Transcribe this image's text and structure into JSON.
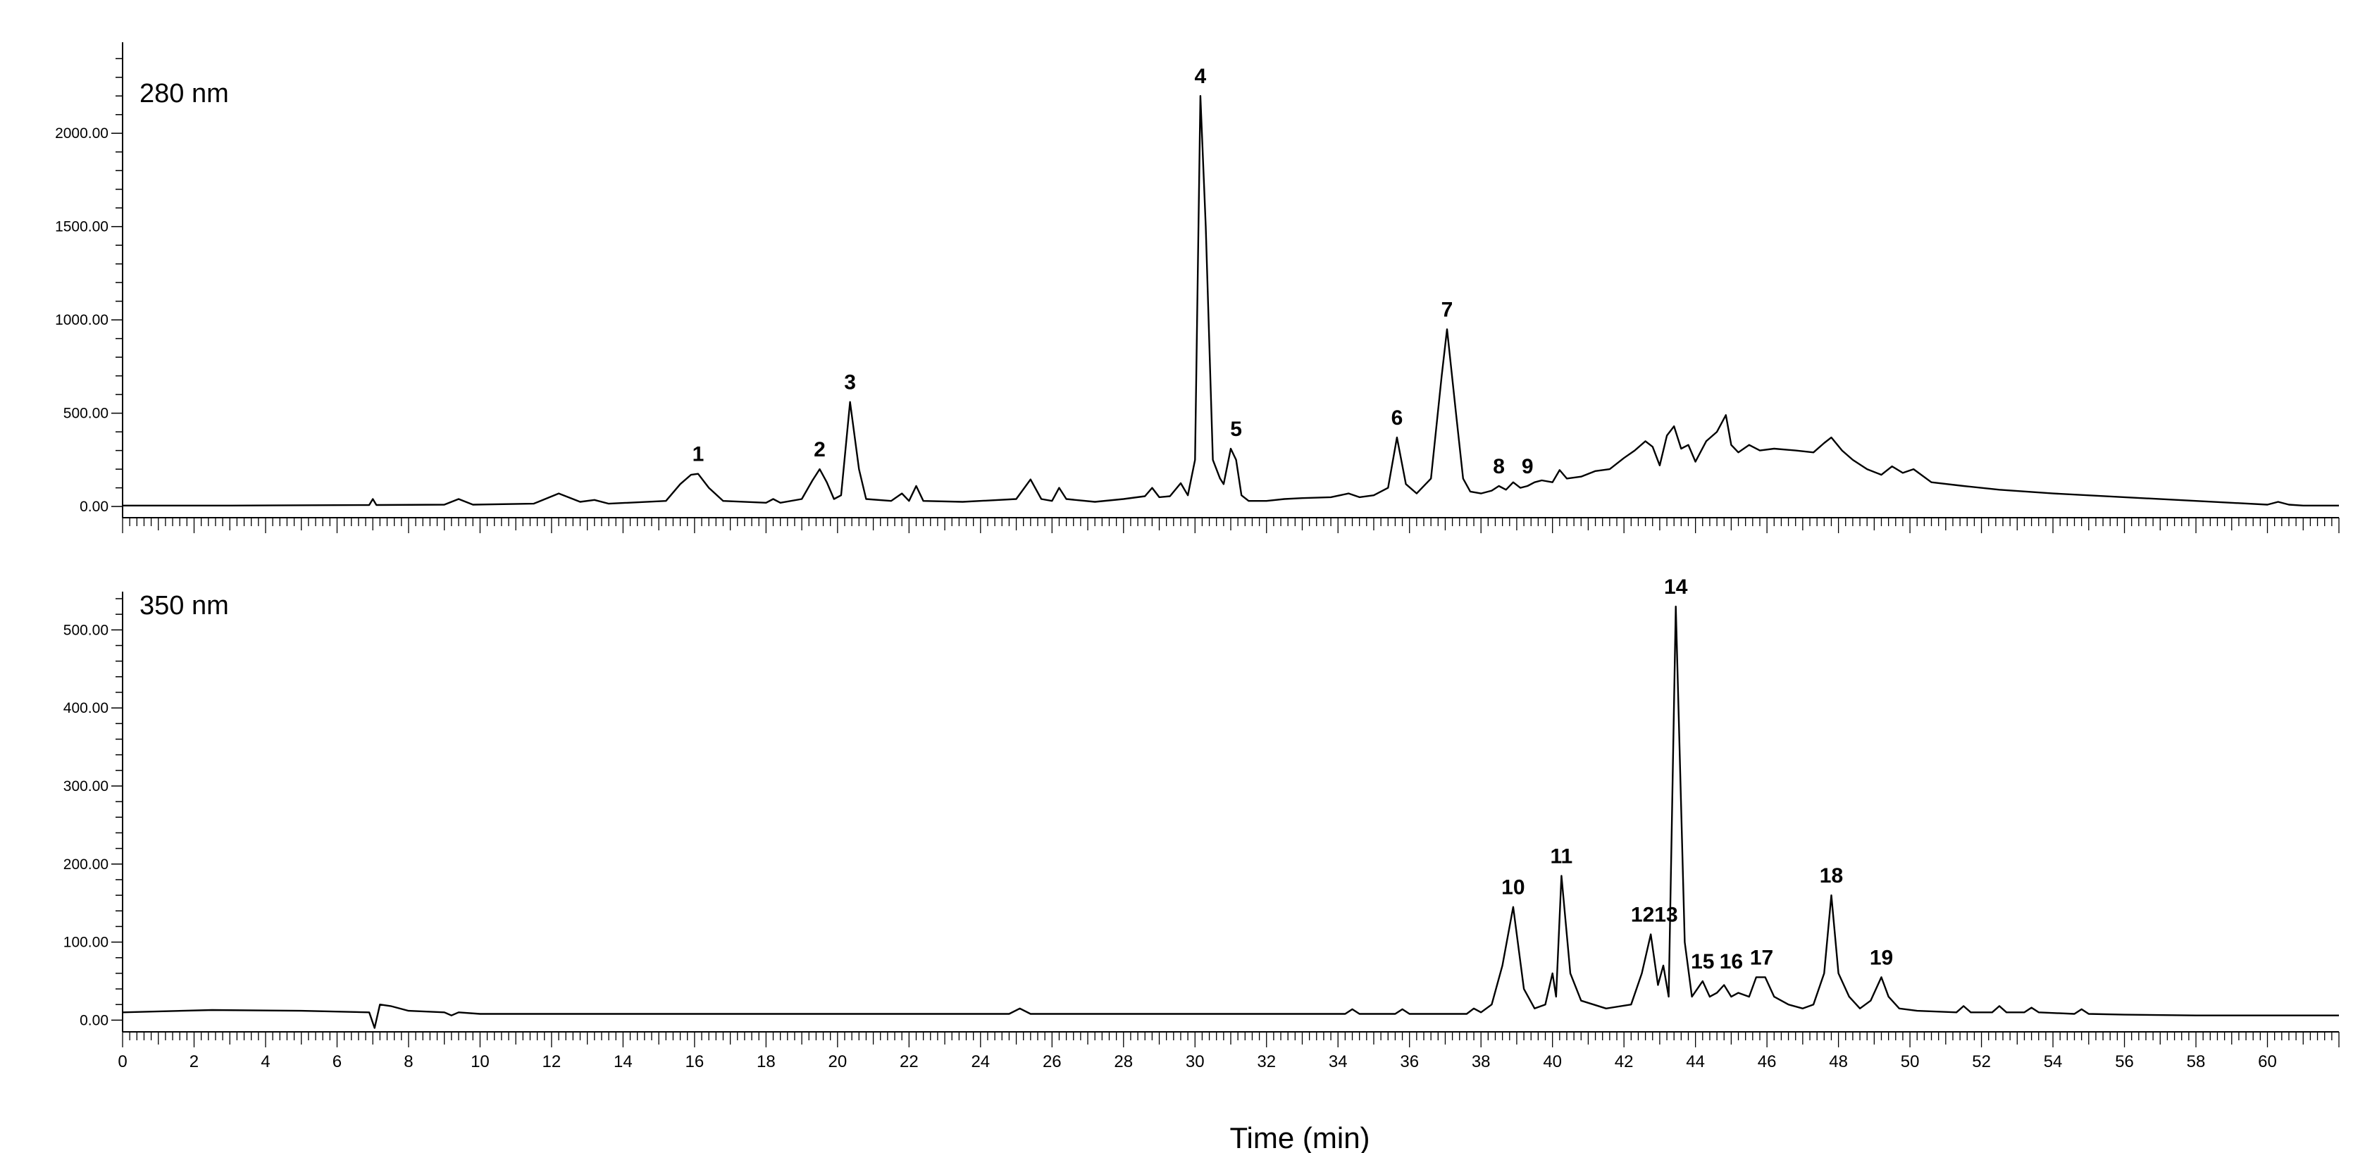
{
  "chart_data": [
    {
      "type": "line",
      "title": "280 nm",
      "xlabel": "",
      "ylabel": "",
      "xlim": [
        0,
        62
      ],
      "ylim": [
        -60,
        2450
      ],
      "yticks": [
        0,
        500,
        1000,
        1500,
        2000
      ],
      "ytick_labels": [
        "0.00",
        "500.00",
        "1000.00",
        "1500.00",
        "2000.00"
      ],
      "grid": false,
      "series": [
        {
          "x": [
            0,
            3,
            6.9,
            7.0,
            7.1,
            9,
            9.4,
            9.8,
            11.5,
            12.2,
            12.8,
            13.2,
            13.6,
            15.2,
            15.6,
            15.9,
            16.1,
            16.4,
            16.8,
            18.0,
            18.2,
            18.4,
            19.0,
            19.3,
            19.5,
            19.7,
            19.9,
            20.1,
            20.35,
            20.6,
            20.8,
            21.5,
            21.8,
            22.0,
            22.2,
            22.4,
            23.5,
            25.0,
            25.4,
            25.7,
            26.0,
            26.2,
            26.4,
            27.2,
            28.0,
            28.6,
            28.8,
            29.0,
            29.3,
            29.6,
            29.8,
            30.0,
            30.15,
            30.3,
            30.5,
            30.7,
            30.8,
            31.0,
            31.15,
            31.3,
            31.5,
            32.0,
            32.5,
            33.0,
            33.8,
            34.3,
            34.6,
            35.0,
            35.4,
            35.65,
            35.9,
            36.2,
            36.6,
            36.9,
            37.05,
            37.3,
            37.5,
            37.7,
            38.0,
            38.3,
            38.5,
            38.7,
            38.9,
            39.1,
            39.3,
            39.5,
            39.7,
            40.0,
            40.2,
            40.4,
            40.8,
            41.2,
            41.6,
            42.0,
            42.3,
            42.6,
            42.8,
            43.0,
            43.2,
            43.4,
            43.6,
            43.8,
            44.0,
            44.3,
            44.6,
            44.85,
            45.0,
            45.2,
            45.5,
            45.8,
            46.2,
            46.8,
            47.3,
            47.6,
            47.8,
            48.1,
            48.4,
            48.8,
            49.2,
            49.5,
            49.8,
            50.1,
            50.6,
            51.5,
            52.5,
            54.0,
            56.0,
            58.0,
            60.0,
            60.3,
            60.6,
            61.0,
            62.0
          ],
          "y": [
            5,
            5,
            8,
            40,
            8,
            10,
            40,
            10,
            15,
            70,
            25,
            35,
            15,
            30,
            120,
            170,
            175,
            100,
            30,
            20,
            40,
            20,
            40,
            140,
            200,
            130,
            40,
            60,
            560,
            200,
            40,
            30,
            70,
            30,
            110,
            30,
            25,
            40,
            145,
            40,
            30,
            100,
            40,
            25,
            40,
            55,
            100,
            50,
            55,
            125,
            60,
            250,
            2200,
            1500,
            250,
            150,
            120,
            310,
            250,
            60,
            30,
            30,
            40,
            45,
            50,
            70,
            50,
            60,
            100,
            370,
            120,
            70,
            150,
            700,
            950,
            500,
            150,
            80,
            70,
            85,
            110,
            90,
            130,
            100,
            110,
            130,
            140,
            130,
            195,
            150,
            160,
            190,
            200,
            260,
            300,
            350,
            320,
            220,
            380,
            430,
            310,
            330,
            240,
            350,
            400,
            490,
            330,
            290,
            330,
            300,
            310,
            300,
            290,
            340,
            370,
            300,
            250,
            200,
            170,
            215,
            180,
            200,
            130,
            110,
            90,
            70,
            50,
            30,
            10,
            25,
            10,
            5,
            5
          ]
        }
      ],
      "annotations": [
        {
          "text": "1",
          "x": 16.1,
          "y": 175
        },
        {
          "text": "2",
          "x": 19.5,
          "y": 200
        },
        {
          "text": "3",
          "x": 20.35,
          "y": 560
        },
        {
          "text": "4",
          "x": 30.15,
          "y": 2200
        },
        {
          "text": "5",
          "x": 31.15,
          "y": 310
        },
        {
          "text": "6",
          "x": 35.65,
          "y": 370
        },
        {
          "text": "7",
          "x": 37.05,
          "y": 950
        },
        {
          "text": "8",
          "x": 38.5,
          "y": 110
        },
        {
          "text": "9",
          "x": 39.3,
          "y": 110
        }
      ]
    },
    {
      "type": "line",
      "title": "350 nm",
      "xlabel": "Time (min)",
      "ylabel": "",
      "xlim": [
        0,
        62
      ],
      "ylim": [
        -15,
        540
      ],
      "yticks": [
        0,
        100,
        200,
        300,
        400,
        500
      ],
      "ytick_labels": [
        "0.00",
        "100.00",
        "200.00",
        "300.00",
        "400.00",
        "500.00"
      ],
      "xticks": [
        0,
        2,
        4,
        6,
        8,
        10,
        12,
        14,
        16,
        18,
        20,
        22,
        24,
        26,
        28,
        30,
        32,
        34,
        36,
        38,
        40,
        42,
        44,
        46,
        48,
        50,
        52,
        54,
        56,
        58,
        60
      ],
      "xtick_labels": [
        "0",
        "2",
        "4",
        "6",
        "8",
        "10",
        "12",
        "14",
        "16",
        "18",
        "20",
        "22",
        "24",
        "26",
        "28",
        "30",
        "32",
        "34",
        "36",
        "38",
        "40",
        "42",
        "44",
        "46",
        "48",
        "50",
        "52",
        "54",
        "56",
        "58",
        "60"
      ],
      "grid": false,
      "series": [
        {
          "x": [
            0,
            2.5,
            5,
            6.9,
            7.05,
            7.2,
            7.5,
            8.0,
            9.0,
            9.2,
            9.4,
            10,
            20,
            24.8,
            25.1,
            25.4,
            30,
            34.2,
            34.4,
            34.6,
            35.6,
            35.8,
            36,
            37.6,
            37.8,
            38.0,
            38.3,
            38.6,
            38.9,
            39.2,
            39.5,
            39.8,
            40.0,
            40.1,
            40.25,
            40.5,
            40.8,
            41.5,
            42.2,
            42.5,
            42.75,
            42.95,
            43.1,
            43.25,
            43.45,
            43.7,
            43.9,
            44.2,
            44.4,
            44.6,
            44.8,
            45.0,
            45.2,
            45.5,
            45.7,
            45.95,
            46.2,
            46.6,
            47.0,
            47.3,
            47.6,
            47.8,
            48.0,
            48.3,
            48.6,
            48.9,
            49.2,
            49.4,
            49.7,
            50.2,
            51.3,
            51.5,
            51.7,
            52.3,
            52.5,
            52.7,
            53.2,
            53.4,
            53.6,
            54.6,
            54.8,
            55.0,
            56,
            58,
            60,
            62
          ],
          "y": [
            10,
            13,
            12,
            10,
            -10,
            20,
            18,
            12,
            10,
            6,
            10,
            8,
            8,
            8,
            15,
            8,
            8,
            8,
            14,
            8,
            8,
            14,
            8,
            8,
            15,
            10,
            20,
            70,
            145,
            40,
            15,
            20,
            60,
            30,
            185,
            60,
            25,
            15,
            20,
            60,
            110,
            45,
            70,
            30,
            530,
            100,
            30,
            50,
            30,
            35,
            45,
            30,
            35,
            30,
            55,
            55,
            30,
            20,
            15,
            20,
            60,
            160,
            60,
            30,
            15,
            25,
            55,
            30,
            15,
            12,
            10,
            18,
            10,
            10,
            18,
            10,
            10,
            16,
            10,
            8,
            14,
            8,
            7,
            6,
            6,
            6
          ]
        }
      ],
      "annotations": [
        {
          "text": "10",
          "x": 38.9,
          "y": 145
        },
        {
          "text": "11",
          "x": 40.25,
          "y": 185
        },
        {
          "text": "1213",
          "x": 42.85,
          "y": 110
        },
        {
          "text": "14",
          "x": 43.45,
          "y": 530
        },
        {
          "text": "15",
          "x": 44.2,
          "y": 50
        },
        {
          "text": "16",
          "x": 45.0,
          "y": 50
        },
        {
          "text": "17",
          "x": 45.85,
          "y": 55
        },
        {
          "text": "18",
          "x": 47.8,
          "y": 160
        },
        {
          "text": "19",
          "x": 49.2,
          "y": 55
        }
      ]
    }
  ]
}
